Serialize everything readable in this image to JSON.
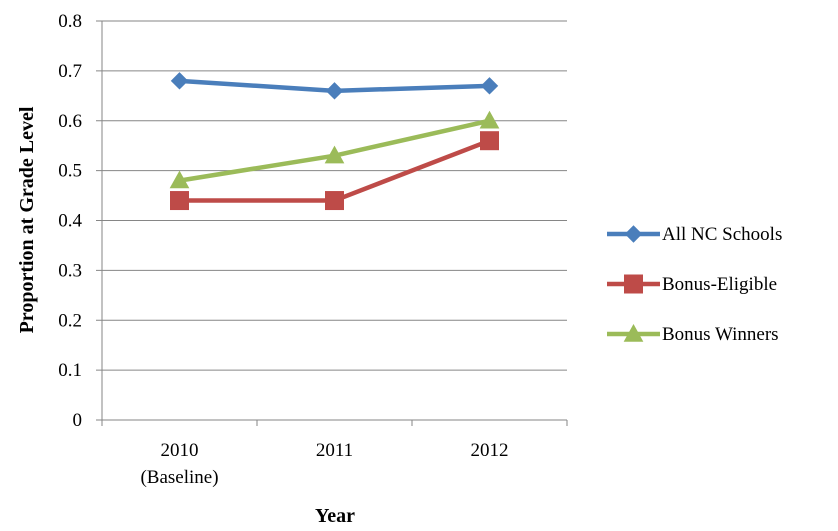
{
  "chart_data": {
    "type": "line",
    "title": "",
    "xlabel": "Year",
    "ylabel": "Proportion at Grade Level",
    "categories": [
      [
        "2010",
        "(Baseline)"
      ],
      [
        "2011"
      ],
      [
        "2012"
      ]
    ],
    "ylim": [
      0,
      0.8
    ],
    "yticks": [
      "0",
      "0.1",
      "0.2",
      "0.3",
      "0.4",
      "0.5",
      "0.6",
      "0.7",
      "0.8"
    ],
    "grid": true,
    "legend_position": "right",
    "series": [
      {
        "name": "All NC Schools",
        "values": [
          0.68,
          0.66,
          0.67
        ],
        "color": "#4A7EBB",
        "marker": "diamond"
      },
      {
        "name": "Bonus-Eligible",
        "values": [
          0.44,
          0.44,
          0.56
        ],
        "color": "#BE4B48",
        "marker": "square"
      },
      {
        "name": "Bonus Winners",
        "values": [
          0.48,
          0.53,
          0.6
        ],
        "color": "#9BBB59",
        "marker": "triangle"
      }
    ]
  }
}
